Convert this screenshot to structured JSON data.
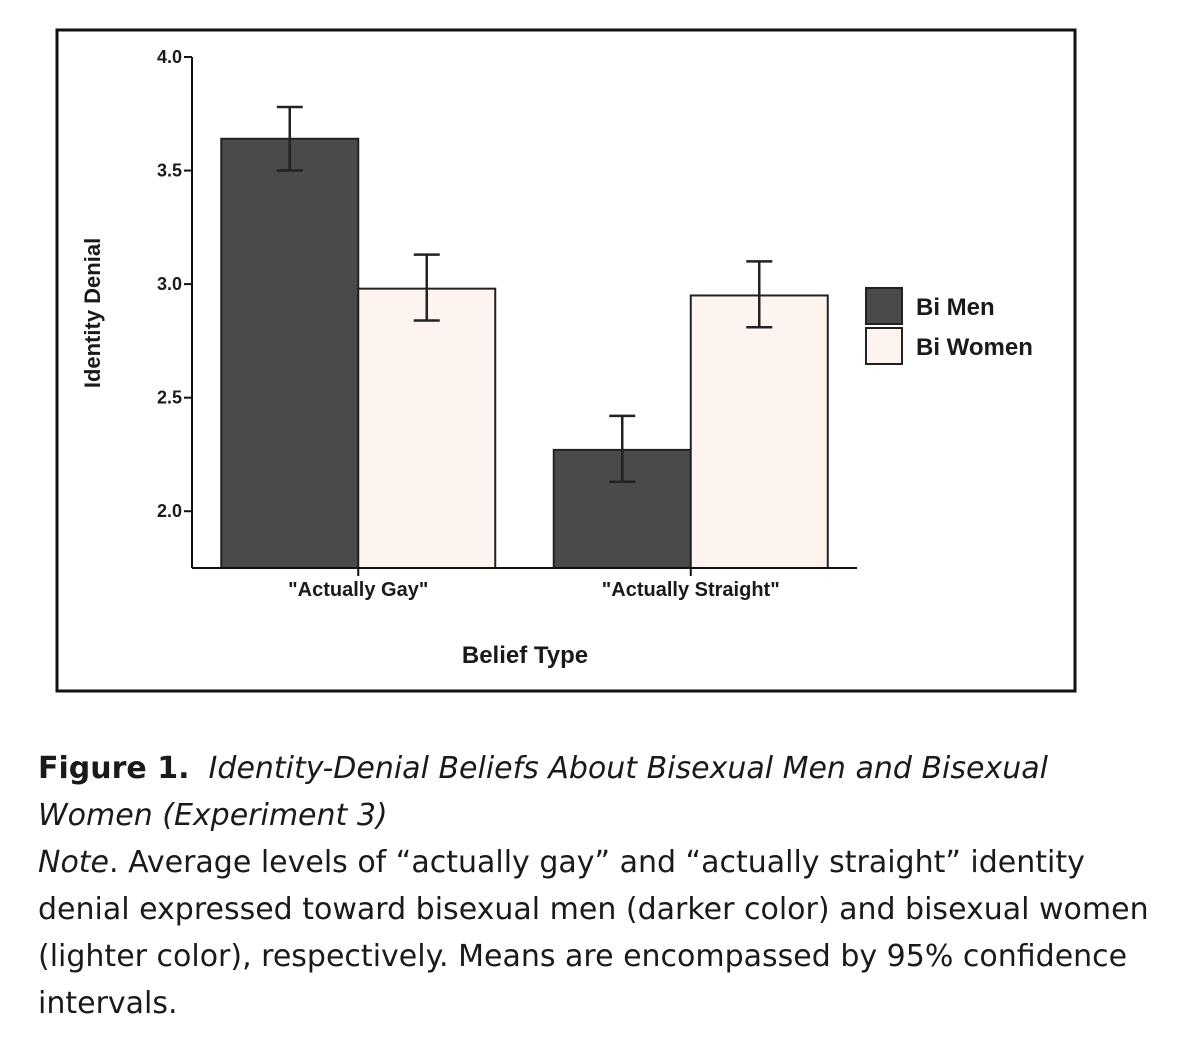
{
  "chart_data": {
    "type": "bar",
    "xlabel": "Belief Type",
    "ylabel": "Identity Denial",
    "ylim": [
      1.75,
      4.0
    ],
    "yticks": [
      "2.0",
      "2.5",
      "3.0",
      "3.5",
      "4.0"
    ],
    "categories": [
      "\"Actually Gay\"",
      "\"Actually Straight\""
    ],
    "series": [
      {
        "name": "Bi Men",
        "color": "#4a4a4a",
        "values": [
          3.64,
          2.27
        ],
        "ci_low": [
          3.5,
          2.13
        ],
        "ci_high": [
          3.78,
          2.42
        ]
      },
      {
        "name": "Bi Women",
        "color": "#fdf3ef",
        "values": [
          2.98,
          2.95
        ],
        "ci_low": [
          2.84,
          2.81
        ],
        "ci_high": [
          3.13,
          3.1
        ]
      }
    ],
    "legend_position": "right",
    "grid": false
  },
  "caption": {
    "figure_label": "Figure 1.",
    "figure_title": "Identity-Denial Beliefs About Bisexual Men and Bisexual Women (Experiment 3)",
    "note_label": "Note",
    "note_text": ". Average levels of “actually gay” and “actually straight” identity denial expressed toward bisexual men (darker color) and bisexual women (lighter color), respectively. Means are encompassed by 95% confidence intervals."
  }
}
